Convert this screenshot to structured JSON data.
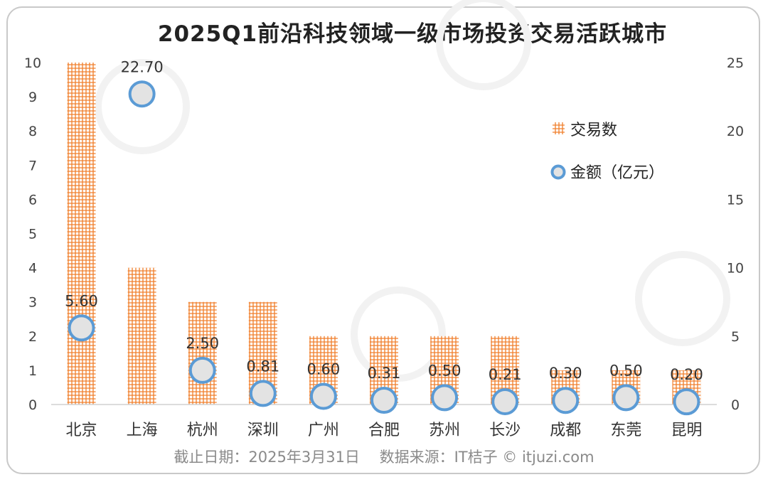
{
  "title": "2025Q1前沿科技领域一级市场投资交易活跃城市",
  "footer": "截止日期：2025年3月31日　 数据来源：IT桔子 © itjuzi.com",
  "watermark": "IT桔子 ITJUZI.COM",
  "colors": {
    "bar": "#f07e2a",
    "marker_fill": "#e3e3e3",
    "marker_stroke": "#5b9bd5"
  },
  "chart_data": {
    "type": "bar",
    "categories": [
      "北京",
      "上海",
      "杭州",
      "深圳",
      "广州",
      "合肥",
      "苏州",
      "长沙",
      "成都",
      "东莞",
      "昆明"
    ],
    "series": [
      {
        "name": "交易数",
        "type": "bar",
        "axis": "left",
        "values": [
          10,
          4,
          3,
          3,
          2,
          2,
          2,
          2,
          1,
          1,
          1
        ]
      },
      {
        "name": "金额（亿元）",
        "type": "scatter",
        "axis": "right",
        "values": [
          5.6,
          22.7,
          2.5,
          0.81,
          0.6,
          0.31,
          0.5,
          0.21,
          0.3,
          0.5,
          0.2
        ],
        "labels": [
          "5.60",
          "22.70",
          "2.50",
          "0.81",
          "0.60",
          "0.31",
          "0.50",
          "0.21",
          "0.30",
          "0.50",
          "0.20"
        ]
      }
    ],
    "y_left": {
      "ticks": [
        "0",
        "1",
        "2",
        "3",
        "4",
        "5",
        "6",
        "7",
        "8",
        "9",
        "10"
      ],
      "lim": [
        0,
        10
      ]
    },
    "y_right": {
      "ticks": [
        "0",
        "5",
        "10",
        "15",
        "20",
        "25"
      ],
      "lim": [
        0,
        25
      ]
    },
    "legend": [
      "交易数",
      "金额（亿元）"
    ],
    "legend_position": "top-right",
    "grid": false
  }
}
